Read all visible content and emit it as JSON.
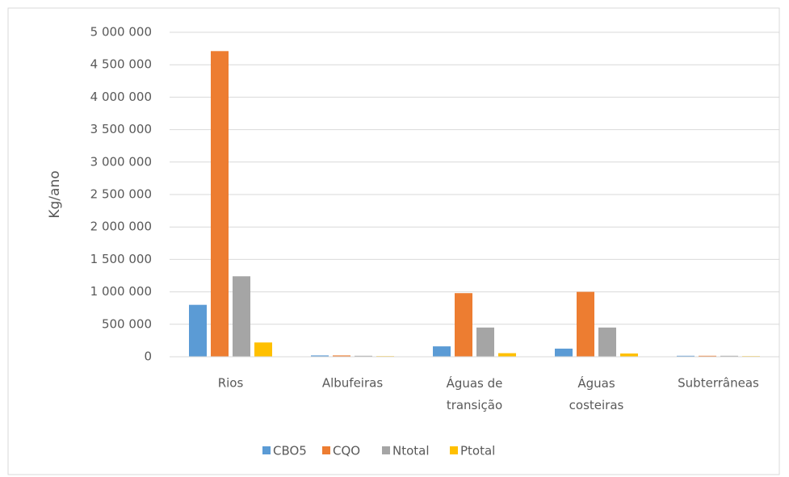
{
  "chart_data": {
    "type": "bar",
    "y_label": "Kg/ano",
    "categories": [
      "Rios",
      "Albufeiras",
      "Águas de transição",
      "Águas costeiras",
      "Subterrâneas"
    ],
    "series": [
      {
        "name": "CBO5",
        "color": "#5b9bd5",
        "values": [
          800000,
          20000,
          160000,
          125000,
          15000
        ]
      },
      {
        "name": "CQO",
        "color": "#ed7d31",
        "values": [
          4710000,
          20000,
          980000,
          1000000,
          15000
        ]
      },
      {
        "name": "Ntotal",
        "color": "#a5a5a5",
        "values": [
          1240000,
          15000,
          450000,
          450000,
          15000
        ]
      },
      {
        "name": "Ptotal",
        "color": "#ffc000",
        "values": [
          220000,
          10000,
          55000,
          50000,
          10000
        ]
      }
    ],
    "ylim": [
      0,
      5000000
    ],
    "yticks": [
      0,
      {
        "value": 500000,
        "label": "500 000"
      },
      {
        "value": 1000000,
        "label": "1 000 000"
      },
      {
        "value": 1500000,
        "label": "1 500 000"
      },
      {
        "value": 2000000,
        "label": "2 000 000"
      },
      {
        "value": 2500000,
        "label": "2 500 000"
      },
      {
        "value": 3000000,
        "label": "3 000 000"
      },
      {
        "value": 3500000,
        "label": "3 500 000"
      },
      {
        "value": 4000000,
        "label": "4 000 000"
      },
      {
        "value": 4500000,
        "label": "4 500 000"
      },
      {
        "value": 5000000,
        "label": "5 000 000"
      }
    ],
    "grid": true,
    "legend": "bottom"
  }
}
